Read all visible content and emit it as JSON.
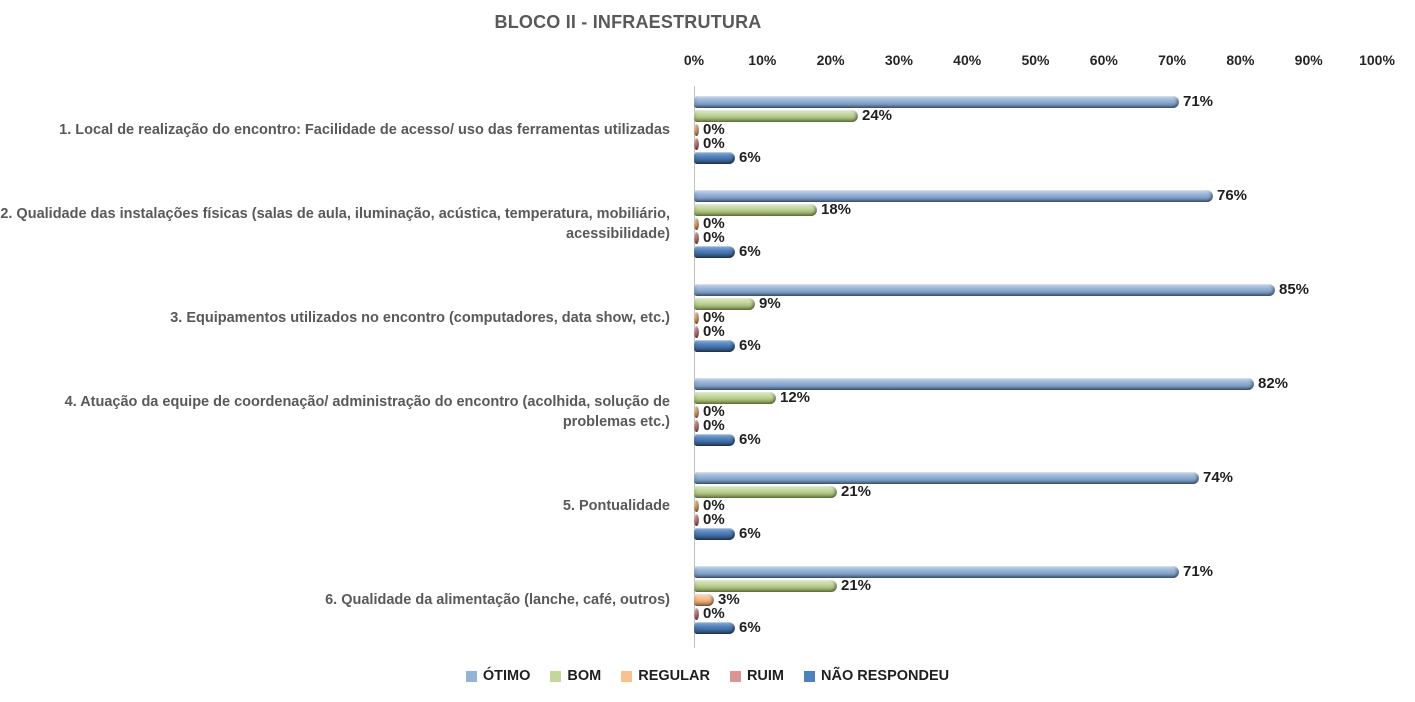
{
  "chart_data": {
    "type": "bar",
    "orientation": "horizontal",
    "title": "BLOCO II - INFRAESTRUTURA",
    "x_ticks": [
      "0%",
      "10%",
      "20%",
      "30%",
      "40%",
      "50%",
      "60%",
      "70%",
      "80%",
      "90%",
      "100%"
    ],
    "xlim": [
      0,
      100
    ],
    "grid": false,
    "legend_position": "bottom",
    "data_label_suffix": "%",
    "categories": [
      "1. Local de realização do encontro: Facilidade de acesso/ uso das ferramentas utilizadas",
      "2. Qualidade das instalações físicas (salas de aula, iluminação, acústica, temperatura, mobiliário, acessibilidade)",
      "3. Equipamentos utilizados no encontro (computadores, data show, etc.)",
      "4. Atuação da equipe de coordenação/ administração do encontro (acolhida, solução de problemas etc.)",
      "5. Pontualidade",
      "6. Qualidade da alimentação (lanche, café, outros)"
    ],
    "series": [
      {
        "name": "ÓTIMO",
        "color": "#95B3D7",
        "values": [
          71,
          76,
          85,
          82,
          74,
          71
        ]
      },
      {
        "name": "BOM",
        "color": "#C3D69B",
        "values": [
          24,
          18,
          9,
          12,
          21,
          21
        ]
      },
      {
        "name": "REGULAR",
        "color": "#FAC090",
        "values": [
          0,
          0,
          0,
          0,
          0,
          3
        ]
      },
      {
        "name": "RUIM",
        "color": "#D99694",
        "values": [
          0,
          0,
          0,
          0,
          0,
          0
        ]
      },
      {
        "name": "NÃO RESPONDEU",
        "color": "#4F81BD",
        "values": [
          6,
          6,
          6,
          6,
          6,
          6
        ]
      }
    ]
  }
}
